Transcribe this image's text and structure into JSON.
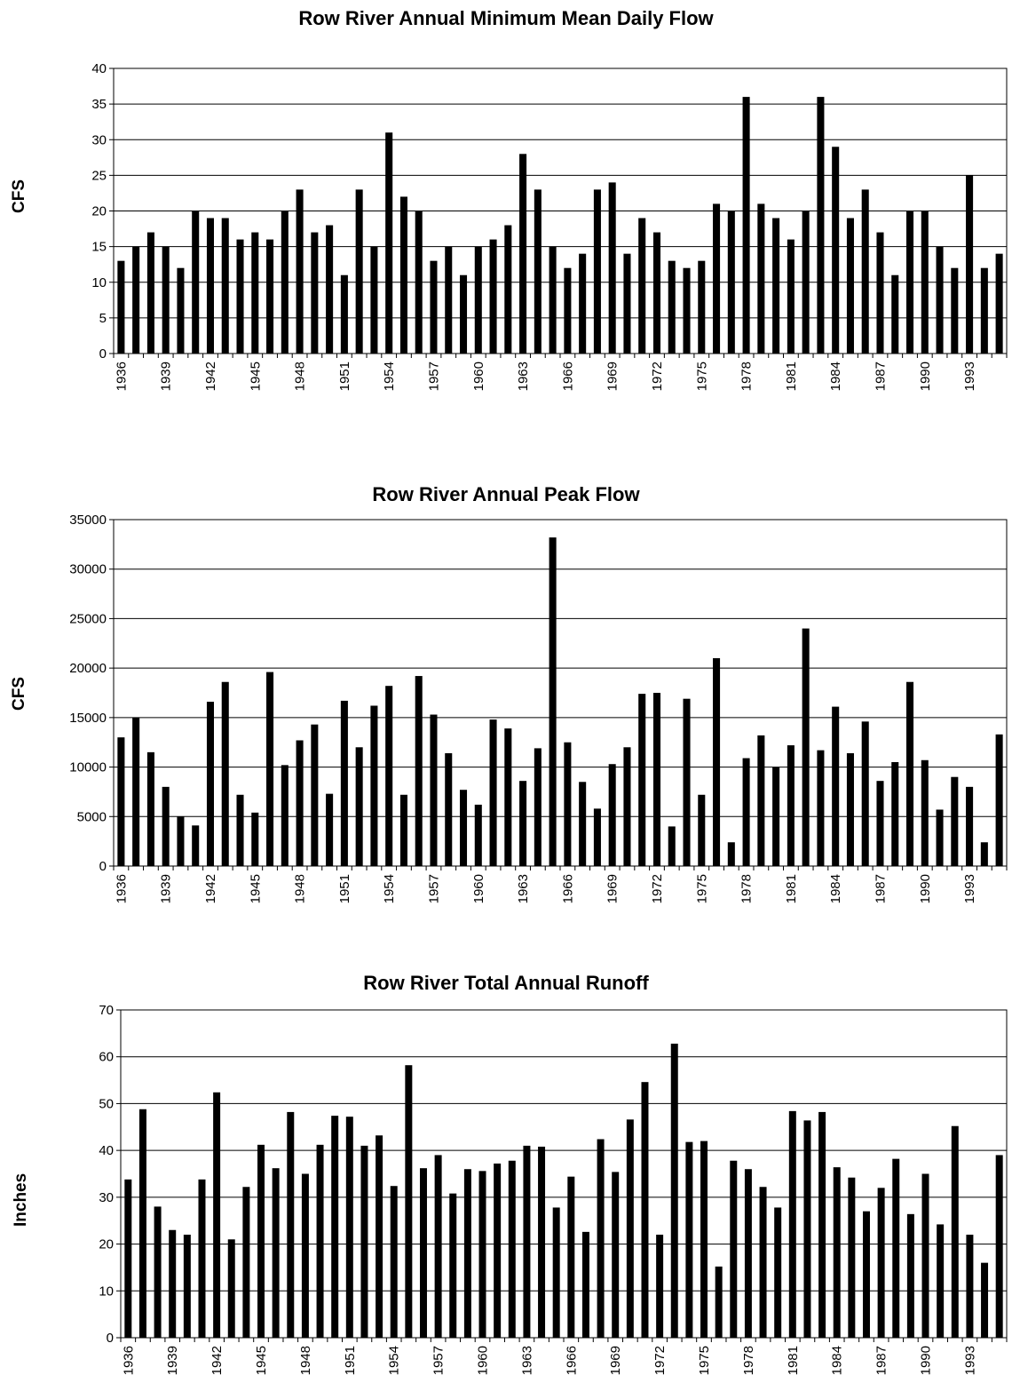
{
  "chart_data": [
    {
      "type": "bar",
      "title": "Row River Annual Minimum Mean Daily Flow",
      "xlabel": "",
      "ylabel": "CFS",
      "ylim": [
        0,
        40
      ],
      "yticks": [
        0,
        5,
        10,
        15,
        20,
        25,
        30,
        35,
        40
      ],
      "grid": true,
      "categories": [
        "1936",
        "1937",
        "1938",
        "1939",
        "1940",
        "1941",
        "1942",
        "1943",
        "1944",
        "1945",
        "1946",
        "1947",
        "1948",
        "1949",
        "1950",
        "1951",
        "1952",
        "1953",
        "1954",
        "1955",
        "1956",
        "1957",
        "1958",
        "1959",
        "1960",
        "1961",
        "1962",
        "1963",
        "1964",
        "1965",
        "1966",
        "1967",
        "1968",
        "1969",
        "1970",
        "1971",
        "1972",
        "1973",
        "1974",
        "1975",
        "1976",
        "1977",
        "1978",
        "1979",
        "1980",
        "1981",
        "1982",
        "1983",
        "1984",
        "1985",
        "1986",
        "1987",
        "1988",
        "1989",
        "1990",
        "1991",
        "1992",
        "1993",
        "1994",
        "1995"
      ],
      "tick_labels": [
        "1936",
        "1939",
        "1942",
        "1945",
        "1948",
        "1951",
        "1954",
        "1957",
        "1960",
        "1963",
        "1966",
        "1969",
        "1972",
        "1975",
        "1978",
        "1981",
        "1984",
        "1987",
        "1990",
        "1993"
      ],
      "values": [
        13,
        15,
        17,
        15,
        12,
        20,
        19,
        19,
        16,
        17,
        16,
        20,
        23,
        17,
        18,
        11,
        23,
        15,
        31,
        22,
        20,
        13,
        15,
        11,
        15,
        16,
        18,
        28,
        23,
        15,
        12,
        14,
        23,
        24,
        14,
        19,
        17,
        13,
        12,
        13,
        21,
        20,
        36,
        21,
        19,
        16,
        20,
        36,
        29,
        19,
        23,
        17,
        11,
        20,
        20,
        15,
        12,
        25,
        12,
        14
      ]
    },
    {
      "type": "bar",
      "title": "Row River Annual Peak Flow",
      "xlabel": "",
      "ylabel": "CFS",
      "ylim": [
        0,
        35000
      ],
      "yticks": [
        0,
        5000,
        10000,
        15000,
        20000,
        25000,
        30000,
        35000
      ],
      "grid": true,
      "categories": [
        "1936",
        "1937",
        "1938",
        "1939",
        "1940",
        "1941",
        "1942",
        "1943",
        "1944",
        "1945",
        "1946",
        "1947",
        "1948",
        "1949",
        "1950",
        "1951",
        "1952",
        "1953",
        "1954",
        "1955",
        "1956",
        "1957",
        "1958",
        "1959",
        "1960",
        "1961",
        "1962",
        "1963",
        "1964",
        "1965",
        "1966",
        "1967",
        "1968",
        "1969",
        "1970",
        "1971",
        "1972",
        "1973",
        "1974",
        "1975",
        "1976",
        "1977",
        "1978",
        "1979",
        "1980",
        "1981",
        "1982",
        "1983",
        "1984",
        "1985",
        "1986",
        "1987",
        "1988",
        "1989",
        "1990",
        "1991",
        "1992",
        "1993",
        "1994",
        "1995"
      ],
      "tick_labels": [
        "1936",
        "1939",
        "1942",
        "1945",
        "1948",
        "1951",
        "1954",
        "1957",
        "1960",
        "1963",
        "1966",
        "1969",
        "1972",
        "1975",
        "1978",
        "1981",
        "1984",
        "1987",
        "1990",
        "1993"
      ],
      "values": [
        13000,
        15000,
        11500,
        8000,
        5000,
        4100,
        16600,
        18600,
        7200,
        5400,
        19600,
        10200,
        12700,
        14300,
        7300,
        16700,
        12000,
        16200,
        18200,
        7200,
        19200,
        15300,
        11400,
        7700,
        6200,
        14800,
        13900,
        8600,
        11900,
        33200,
        12500,
        8500,
        5800,
        10300,
        12000,
        17400,
        17500,
        4000,
        16900,
        7200,
        21000,
        2400,
        10900,
        13200,
        10000,
        12200,
        24000,
        11700,
        16100,
        11400,
        14600,
        8600,
        10500,
        18600,
        10700,
        5700,
        9000,
        8000,
        2400,
        13300
      ]
    },
    {
      "type": "bar",
      "title": "Row River Total Annual Runoff",
      "xlabel": "",
      "ylabel": "Inches",
      "ylim": [
        0,
        70
      ],
      "yticks": [
        0,
        10,
        20,
        30,
        40,
        50,
        60,
        70
      ],
      "grid": true,
      "categories": [
        "1936",
        "1937",
        "1938",
        "1939",
        "1940",
        "1941",
        "1942",
        "1943",
        "1944",
        "1945",
        "1946",
        "1947",
        "1948",
        "1949",
        "1950",
        "1951",
        "1952",
        "1953",
        "1954",
        "1955",
        "1956",
        "1957",
        "1958",
        "1959",
        "1960",
        "1961",
        "1962",
        "1963",
        "1964",
        "1965",
        "1966",
        "1967",
        "1968",
        "1969",
        "1970",
        "1971",
        "1972",
        "1973",
        "1974",
        "1975",
        "1976",
        "1977",
        "1978",
        "1979",
        "1980",
        "1981",
        "1982",
        "1983",
        "1984",
        "1985",
        "1986",
        "1987",
        "1988",
        "1989",
        "1990",
        "1991",
        "1992",
        "1993",
        "1994",
        "1995"
      ],
      "tick_labels": [
        "1936",
        "1939",
        "1942",
        "1945",
        "1948",
        "1951",
        "1954",
        "1957",
        "1960",
        "1963",
        "1966",
        "1969",
        "1972",
        "1975",
        "1978",
        "1981",
        "1984",
        "1987",
        "1990",
        "1993"
      ],
      "values": [
        33.8,
        48.8,
        28,
        23,
        22,
        33.8,
        52.4,
        21,
        32.2,
        41.2,
        36.2,
        48.2,
        35,
        41.2,
        47.4,
        47.2,
        41,
        43.2,
        32.4,
        58.2,
        36.2,
        39,
        30.8,
        36,
        35.6,
        37.2,
        37.8,
        41,
        40.8,
        27.8,
        34.4,
        22.6,
        42.4,
        35.4,
        46.6,
        54.6,
        22,
        62.8,
        41.8,
        42,
        15.2,
        37.8,
        36,
        32.2,
        27.8,
        48.4,
        46.4,
        48.2,
        36.4,
        34.2,
        27,
        32,
        38.2,
        26.4,
        35,
        24.2,
        45.2,
        22,
        16,
        39
      ]
    }
  ]
}
